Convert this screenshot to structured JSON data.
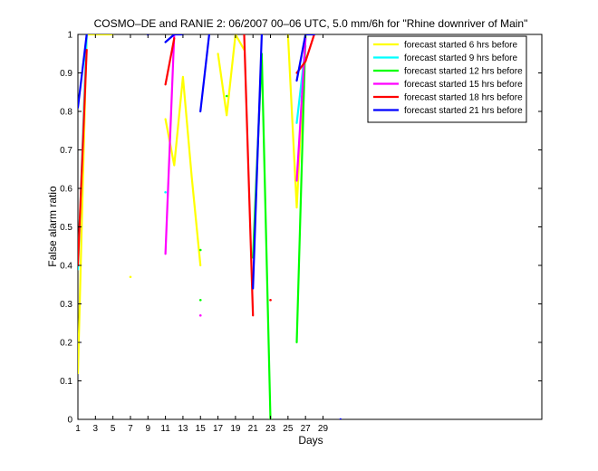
{
  "chart_data": {
    "type": "line",
    "title": "COSMO–DE and RANIE 2: 06/2007 00–06 UTC, 5.0 mm/6h for \"Rhine downriver of Main\"",
    "xlabel": "Days",
    "ylabel": "False alarm ratio",
    "xlim": [
      1,
      54
    ],
    "ylim": [
      0,
      1
    ],
    "xticks": [
      1,
      3,
      5,
      7,
      9,
      11,
      13,
      15,
      17,
      19,
      21,
      23,
      25,
      27,
      29
    ],
    "yticks": [
      0,
      0.1,
      0.2,
      0.3,
      0.4,
      0.5,
      0.6,
      0.7,
      0.8,
      0.9,
      1
    ],
    "legend_position": "top-right",
    "grid": false,
    "series": [
      {
        "name": "forecast started 6 hrs before",
        "color": "#ffff00",
        "segments": [
          [
            [
              1,
              0.12
            ],
            [
              2,
              1
            ],
            [
              3,
              1
            ],
            [
              4,
              1
            ],
            [
              5,
              1
            ]
          ],
          [
            [
              11,
              0.78
            ],
            [
              12,
              0.66
            ],
            [
              13,
              0.89
            ],
            [
              14,
              0.63
            ],
            [
              15,
              0.4
            ]
          ],
          [
            [
              17,
              0.95
            ],
            [
              18,
              0.79
            ],
            [
              19,
              1
            ],
            [
              20,
              0.96
            ]
          ],
          [
            [
              25,
              1
            ],
            [
              26,
              0.55
            ],
            [
              27,
              1
            ]
          ]
        ],
        "points": [
          [
            7,
            0.37
          ]
        ]
      },
      {
        "name": "forecast started 9 hrs before",
        "color": "#00ffff",
        "segments": [
          [
            [
              1,
              0.39
            ],
            [
              2,
              1
            ]
          ],
          [
            [
              26,
              0.77
            ],
            [
              27,
              0.97
            ]
          ]
        ],
        "points": [
          [
            11,
            0.59
          ]
        ]
      },
      {
        "name": "forecast started 12 hrs before",
        "color": "#00ff00",
        "segments": [
          [
            [
              21,
              0.42
            ],
            [
              22,
              0.95
            ],
            [
              23,
              0
            ]
          ],
          [
            [
              26,
              0.2
            ],
            [
              27,
              1
            ]
          ]
        ],
        "points": [
          [
            15,
            0.44
          ],
          [
            15,
            0.31
          ],
          [
            18,
            0.84
          ]
        ]
      },
      {
        "name": "forecast started 15 hrs before",
        "color": "#ff00ff",
        "segments": [
          [
            [
              11,
              0.43
            ],
            [
              12,
              1
            ]
          ],
          [
            [
              26,
              0.62
            ],
            [
              27,
              0.99
            ]
          ]
        ],
        "points": [
          [
            15,
            0.27
          ]
        ]
      },
      {
        "name": "forecast started 18 hrs before",
        "color": "#ff0000",
        "segments": [
          [
            [
              1,
              0.4
            ],
            [
              2,
              0.96
            ]
          ],
          [
            [
              11,
              0.87
            ],
            [
              12,
              0.99
            ]
          ],
          [
            [
              20,
              1
            ],
            [
              21,
              0.27
            ]
          ],
          [
            [
              26,
              0.9
            ],
            [
              27,
              0.93
            ],
            [
              28,
              1
            ]
          ]
        ],
        "points": [
          [
            23,
            0.31
          ]
        ]
      },
      {
        "name": "forecast started 21 hrs before",
        "color": "#0000ff",
        "segments": [
          [
            [
              1,
              0.81
            ],
            [
              2,
              1
            ]
          ],
          [
            [
              11,
              0.98
            ],
            [
              12,
              1
            ],
            [
              13,
              1
            ]
          ],
          [
            [
              15,
              0.8
            ],
            [
              16,
              1
            ]
          ],
          [
            [
              21,
              0.34
            ],
            [
              22,
              1
            ]
          ],
          [
            [
              26,
              0.88
            ],
            [
              27,
              1
            ],
            [
              28,
              1
            ]
          ]
        ],
        "points": [
          [
            9,
            1
          ],
          [
            31,
            0
          ]
        ]
      }
    ]
  }
}
